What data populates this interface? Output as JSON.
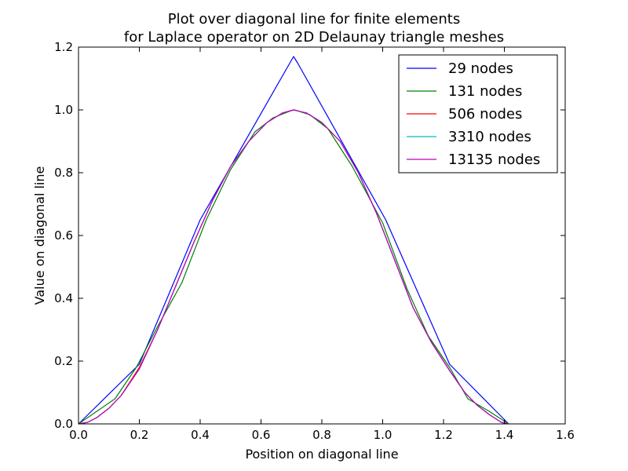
{
  "chart_data": {
    "type": "line",
    "title_line1": "Plot over diagonal line for finite elements",
    "title_line2": "for Laplace operator on 2D Delaunay triangle meshes",
    "xlabel": "Position on diagonal line",
    "ylabel": "Value on diagonal line",
    "xlim": [
      0.0,
      1.6
    ],
    "ylim": [
      0.0,
      1.2
    ],
    "xticks": [
      "0.0",
      "0.2",
      "0.4",
      "0.6",
      "0.8",
      "1.0",
      "1.2",
      "1.4",
      "1.6"
    ],
    "yticks": [
      "0.0",
      "0.2",
      "0.4",
      "0.6",
      "0.8",
      "1.0",
      "1.2"
    ],
    "grid": false,
    "legend_position": "top-right",
    "series": [
      {
        "name": "29 nodes",
        "color": "#0000ff",
        "x": [
          0.0,
          0.2,
          0.4,
          0.707,
          0.72,
          1.01,
          1.22,
          1.414
        ],
        "y": [
          0.0,
          0.19,
          0.65,
          1.17,
          1.15,
          0.65,
          0.19,
          0.0
        ]
      },
      {
        "name": "131 nodes",
        "color": "#008000",
        "x": [
          0.0,
          0.06,
          0.12,
          0.19,
          0.26,
          0.34,
          0.42,
          0.5,
          0.58,
          0.64,
          0.7,
          0.71,
          0.76,
          0.82,
          0.9,
          1.0,
          1.08,
          1.15,
          1.22,
          1.28,
          1.35,
          1.414
        ],
        "y": [
          0.0,
          0.04,
          0.08,
          0.18,
          0.31,
          0.45,
          0.65,
          0.81,
          0.93,
          0.975,
          0.998,
          1.0,
          0.985,
          0.94,
          0.82,
          0.64,
          0.43,
          0.28,
          0.18,
          0.08,
          0.04,
          0.0
        ]
      },
      {
        "name": "506 nodes",
        "color": "#ff0000",
        "x": [
          0.0,
          0.03,
          0.06,
          0.1,
          0.14,
          0.2,
          0.26,
          0.32,
          0.38,
          0.44,
          0.5,
          0.56,
          0.62,
          0.67,
          0.707,
          0.75,
          0.8,
          0.86,
          0.92,
          0.98,
          1.04,
          1.1,
          1.16,
          1.22,
          1.27,
          1.31,
          1.35,
          1.39,
          1.414
        ],
        "y": [
          0.0,
          0.005,
          0.02,
          0.05,
          0.09,
          0.18,
          0.3,
          0.44,
          0.58,
          0.71,
          0.82,
          0.9,
          0.96,
          0.99,
          1.0,
          0.99,
          0.96,
          0.9,
          0.8,
          0.67,
          0.52,
          0.37,
          0.26,
          0.17,
          0.1,
          0.06,
          0.03,
          0.005,
          0.0
        ]
      },
      {
        "name": "3310 nodes",
        "color": "#00bfbf",
        "x": [
          0.0,
          0.03,
          0.06,
          0.1,
          0.14,
          0.2,
          0.26,
          0.32,
          0.38,
          0.44,
          0.5,
          0.56,
          0.62,
          0.67,
          0.707,
          0.75,
          0.8,
          0.86,
          0.92,
          0.98,
          1.04,
          1.1,
          1.16,
          1.22,
          1.27,
          1.31,
          1.35,
          1.39,
          1.414
        ],
        "y": [
          0.0,
          0.005,
          0.02,
          0.05,
          0.09,
          0.175,
          0.3,
          0.44,
          0.58,
          0.71,
          0.82,
          0.9,
          0.96,
          0.99,
          1.0,
          0.99,
          0.96,
          0.9,
          0.8,
          0.67,
          0.52,
          0.37,
          0.26,
          0.17,
          0.1,
          0.06,
          0.03,
          0.005,
          0.0
        ]
      },
      {
        "name": "13135 nodes",
        "color": "#bf00bf",
        "x": [
          0.0,
          0.03,
          0.06,
          0.1,
          0.14,
          0.2,
          0.26,
          0.32,
          0.38,
          0.44,
          0.5,
          0.56,
          0.62,
          0.67,
          0.707,
          0.75,
          0.8,
          0.86,
          0.92,
          0.98,
          1.04,
          1.1,
          1.16,
          1.22,
          1.27,
          1.31,
          1.35,
          1.39,
          1.414
        ],
        "y": [
          0.0,
          0.005,
          0.02,
          0.05,
          0.09,
          0.175,
          0.3,
          0.44,
          0.58,
          0.71,
          0.82,
          0.9,
          0.96,
          0.99,
          1.0,
          0.99,
          0.96,
          0.9,
          0.8,
          0.67,
          0.52,
          0.37,
          0.26,
          0.17,
          0.1,
          0.06,
          0.03,
          0.005,
          0.0
        ]
      }
    ]
  }
}
